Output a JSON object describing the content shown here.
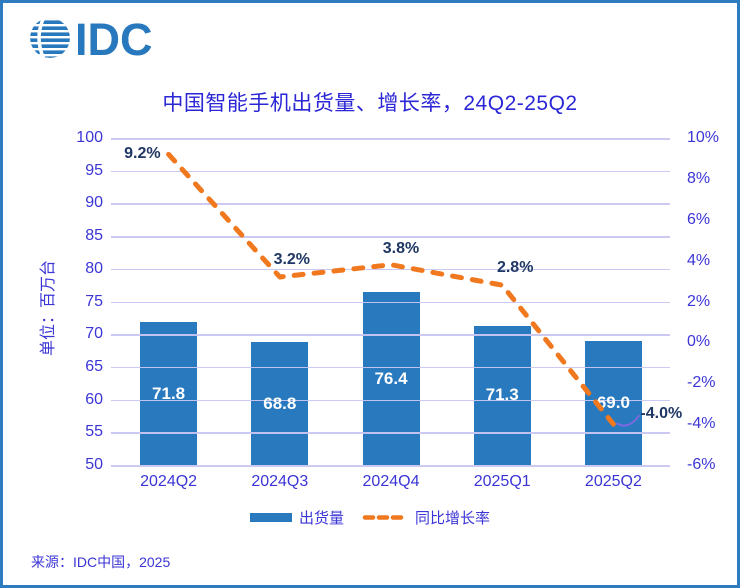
{
  "brand": {
    "logo_text": "IDC"
  },
  "header": {
    "title": "中国智能手机出货量、增长率，24Q2-25Q2"
  },
  "footer": {
    "source": "来源：IDC中国，2025"
  },
  "legend": {
    "bar_label": "出货量",
    "line_label": "同比增长率"
  },
  "colors": {
    "frame_border": "#2E7BC0",
    "bar_fill": "#2979BE",
    "line_stroke": "#F0791F",
    "gridline": "#C9C6F2",
    "axis_text": "#3B35D6",
    "title_text": "#2B26D6",
    "bar_value_text": "#FFFFFF",
    "point_label_text": "#1F3764",
    "leader_line": "#7A6AE0",
    "logo_blue": "#2878BE",
    "background": "#FFFFFF"
  },
  "chart_data": {
    "type": "combo",
    "title": "中国智能手机出货量、增长率，24Q2-25Q2",
    "categories": [
      "2024Q2",
      "2024Q3",
      "2024Q4",
      "2025Q1",
      "2025Q2"
    ],
    "series": [
      {
        "name": "出货量",
        "type": "bar",
        "axis": "left",
        "values": [
          71.8,
          68.8,
          76.4,
          71.3,
          69.0
        ],
        "labels": [
          "71.8",
          "68.8",
          "76.4",
          "71.3",
          "69.0"
        ]
      },
      {
        "name": "同比增长率",
        "type": "line",
        "style": "dashed",
        "axis": "right",
        "values": [
          9.2,
          3.2,
          3.8,
          2.8,
          -4.0
        ],
        "labels": [
          "9.2%",
          "3.2%",
          "3.8%",
          "2.8%",
          "-4.0%"
        ]
      }
    ],
    "left_axis": {
      "title": "单位：百万台",
      "min": 50,
      "max": 100,
      "step": 5,
      "ticks": [
        "100",
        "95",
        "90",
        "85",
        "80",
        "75",
        "70",
        "65",
        "60",
        "55",
        "50"
      ]
    },
    "right_axis": {
      "min": -6,
      "max": 10,
      "step": 2,
      "ticks": [
        "10%",
        "8%",
        "6%",
        "4%",
        "2%",
        "0%",
        "-2%",
        "-4%",
        "-6%"
      ]
    },
    "grid": "horizontal",
    "legend_position": "bottom"
  }
}
